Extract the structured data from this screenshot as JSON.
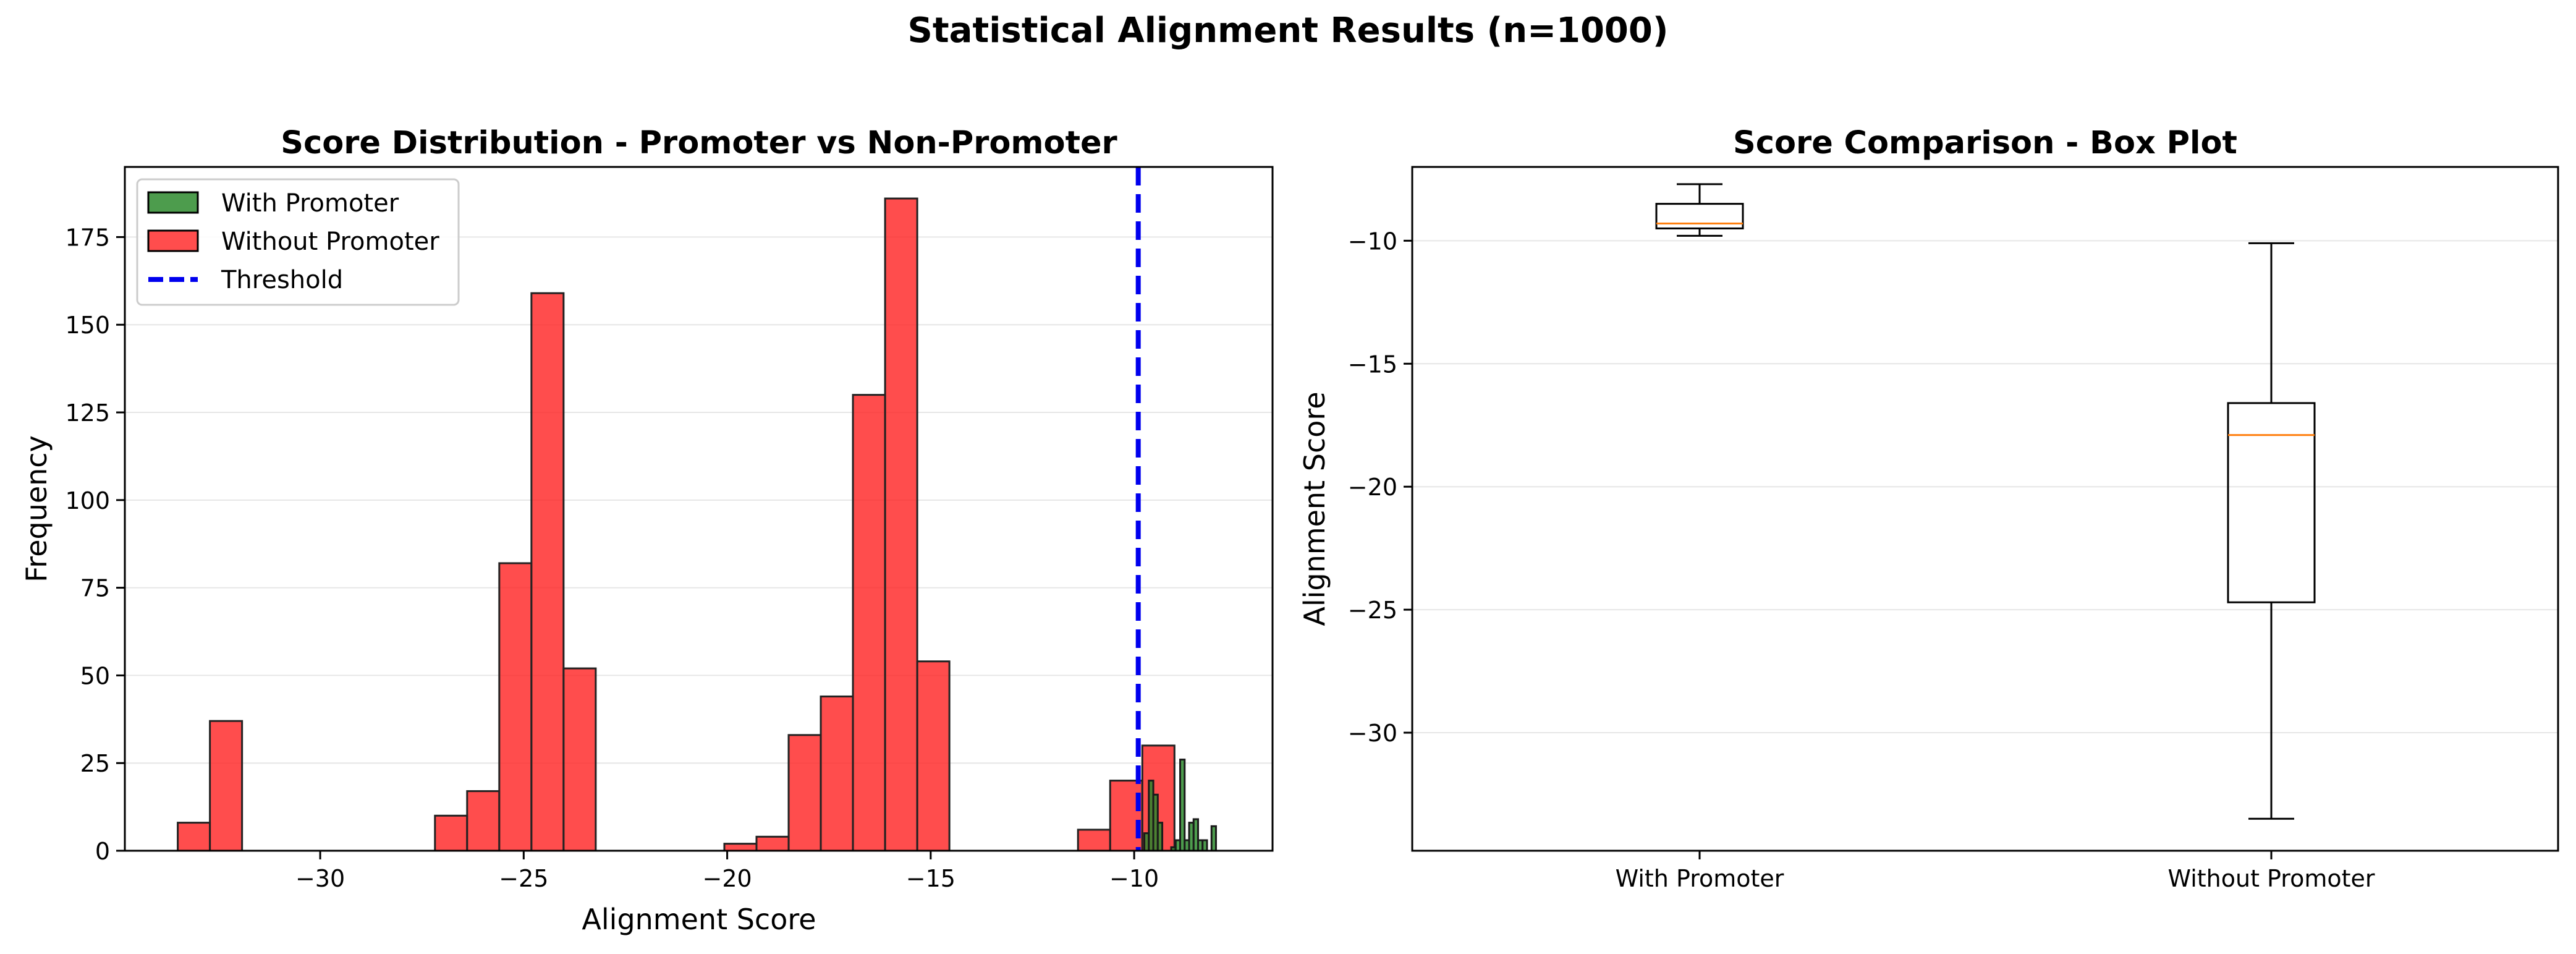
{
  "figure": {
    "suptitle": "Statistical Alignment Results (n=1000)"
  },
  "colors": {
    "with_promoter": "#2e8b2e",
    "without_promoter": "#ff2020",
    "threshold": "#0000ee",
    "median": "#ff7f0e"
  },
  "chart_data": [
    {
      "type": "histogram",
      "title": "Score Distribution - Promoter vs Non-Promoter",
      "xlabel": "Alignment Score",
      "ylabel": "Frequency",
      "xlim": [
        -34.8,
        -6.6
      ],
      "ylim": [
        0,
        195
      ],
      "xticks": [
        -30,
        -25,
        -20,
        -15,
        -10
      ],
      "xtick_labels": [
        "−30",
        "−25",
        "−20",
        "−15",
        "−10"
      ],
      "yticks": [
        0,
        25,
        50,
        75,
        100,
        125,
        150,
        175
      ],
      "grid": "y",
      "legend_position": "top-left",
      "legend": [
        "With Promoter",
        "Without Promoter",
        "Threshold"
      ],
      "series": [
        {
          "name": "Without Promoter",
          "bin_start": -33.5,
          "bin_width": 0.79,
          "counts": [
            8,
            37,
            0,
            0,
            0,
            0,
            0,
            0,
            10,
            17,
            82,
            159,
            52,
            0,
            0,
            0,
            0,
            2,
            4,
            33,
            44,
            130,
            186,
            54,
            0,
            0,
            0,
            0,
            6,
            20,
            30
          ]
        },
        {
          "name": "With Promoter",
          "bins": [
            {
              "start": -9.75,
              "end": -9.64,
              "count": 5
            },
            {
              "start": -9.64,
              "end": -9.53,
              "count": 20
            },
            {
              "start": -9.53,
              "end": -9.42,
              "count": 16
            },
            {
              "start": -9.42,
              "end": -9.31,
              "count": 8
            },
            {
              "start": -9.31,
              "end": -9.2,
              "count": 0
            },
            {
              "start": -9.2,
              "end": -9.09,
              "count": 0
            },
            {
              "start": -9.09,
              "end": -8.98,
              "count": 1
            },
            {
              "start": -8.98,
              "end": -8.87,
              "count": 3
            },
            {
              "start": -8.87,
              "end": -8.76,
              "count": 26
            },
            {
              "start": -8.76,
              "end": -8.65,
              "count": 3
            },
            {
              "start": -8.65,
              "end": -8.54,
              "count": 8
            },
            {
              "start": -8.54,
              "end": -8.43,
              "count": 9
            },
            {
              "start": -8.43,
              "end": -8.32,
              "count": 3
            },
            {
              "start": -8.32,
              "end": -8.21,
              "count": 3
            },
            {
              "start": -8.21,
              "end": -8.1,
              "count": 0
            },
            {
              "start": -8.1,
              "end": -7.99,
              "count": 7
            }
          ]
        },
        {
          "name": "Threshold",
          "x": -9.9
        }
      ]
    },
    {
      "type": "box",
      "title": "Score Comparison - Box Plot",
      "xlabel": "",
      "ylabel": "Alignment Score",
      "ylim": [
        -34.8,
        -7.0
      ],
      "yticks": [
        -10,
        -15,
        -20,
        -25,
        -30
      ],
      "ytick_labels": [
        "−10",
        "−15",
        "−20",
        "−25",
        "−30"
      ],
      "grid": "y",
      "categories": [
        "With Promoter",
        "Without Promoter"
      ],
      "boxes": [
        {
          "name": "With Promoter",
          "whisker_low": -9.8,
          "q1": -9.5,
          "median": -9.3,
          "q3": -8.5,
          "whisker_high": -7.7
        },
        {
          "name": "Without Promoter",
          "whisker_low": -33.5,
          "q1": -24.7,
          "median": -17.9,
          "q3": -16.6,
          "whisker_high": -10.1
        }
      ]
    }
  ]
}
